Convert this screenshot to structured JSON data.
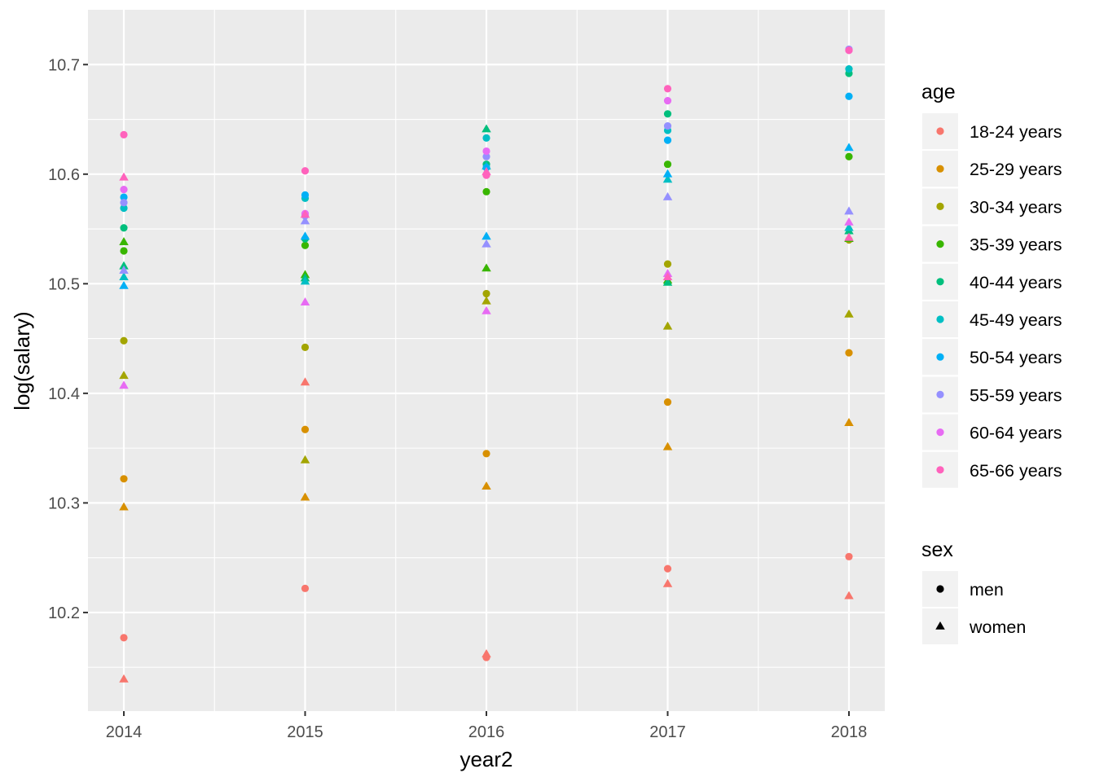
{
  "chart_data": {
    "type": "scatter",
    "xlabel": "year2",
    "ylabel": "log(salary)",
    "categories": [
      "2014",
      "2015",
      "2016",
      "2017",
      "2018"
    ],
    "ylim": [
      10.11,
      10.75
    ],
    "y_ticks": [
      "10.2",
      "10.3",
      "10.4",
      "10.5",
      "10.6",
      "10.7"
    ],
    "grid": true,
    "legend_position": "right",
    "legend_age": {
      "title": "age",
      "entries": [
        {
          "label": "18-24 years",
          "color": "#F8766D"
        },
        {
          "label": "25-29 years",
          "color": "#D89000"
        },
        {
          "label": "30-34 years",
          "color": "#A3A500"
        },
        {
          "label": "35-39 years",
          "color": "#39B600"
        },
        {
          "label": "40-44 years",
          "color": "#00BF7D"
        },
        {
          "label": "45-49 years",
          "color": "#00BFC4"
        },
        {
          "label": "50-54 years",
          "color": "#00B0F6"
        },
        {
          "label": "55-59 years",
          "color": "#9590FF"
        },
        {
          "label": "60-64 years",
          "color": "#E76BF3"
        },
        {
          "label": "65-66 years",
          "color": "#FF62BC"
        }
      ]
    },
    "legend_sex": {
      "title": "sex",
      "entries": [
        {
          "label": "men",
          "shape": "circle"
        },
        {
          "label": "women",
          "shape": "triangle"
        }
      ]
    },
    "series": [
      {
        "age": "18-24 years",
        "sex": "men",
        "values": [
          10.177,
          10.222,
          10.159,
          10.24,
          10.251
        ]
      },
      {
        "age": "18-24 years",
        "sex": "women",
        "values": [
          10.139,
          10.41,
          10.162,
          10.226,
          10.215
        ]
      },
      {
        "age": "25-29 years",
        "sex": "men",
        "values": [
          10.322,
          10.367,
          10.345,
          10.392,
          10.437
        ]
      },
      {
        "age": "25-29 years",
        "sex": "women",
        "values": [
          10.296,
          10.305,
          10.315,
          10.351,
          10.373
        ]
      },
      {
        "age": "30-34 years",
        "sex": "men",
        "values": [
          10.448,
          10.442,
          10.491,
          10.518,
          10.54
        ]
      },
      {
        "age": "30-34 years",
        "sex": "women",
        "values": [
          10.416,
          10.339,
          10.484,
          10.461,
          10.472
        ]
      },
      {
        "age": "35-39 years",
        "sex": "men",
        "values": [
          10.53,
          10.535,
          10.584,
          10.609,
          10.616
        ]
      },
      {
        "age": "35-39 years",
        "sex": "women",
        "values": [
          10.538,
          10.508,
          10.514,
          10.503,
          10.541
        ]
      },
      {
        "age": "40-44 years",
        "sex": "men",
        "values": [
          10.551,
          10.541,
          10.609,
          10.655,
          10.692
        ]
      },
      {
        "age": "40-44 years",
        "sex": "women",
        "values": [
          10.516,
          10.505,
          10.641,
          10.501,
          10.548
        ]
      },
      {
        "age": "45-49 years",
        "sex": "men",
        "values": [
          10.569,
          10.578,
          10.633,
          10.64,
          10.696
        ]
      },
      {
        "age": "45-49 years",
        "sex": "women",
        "values": [
          10.506,
          10.502,
          10.607,
          10.595,
          10.551
        ]
      },
      {
        "age": "50-54 years",
        "sex": "men",
        "values": [
          10.579,
          10.581,
          10.606,
          10.631,
          10.671
        ]
      },
      {
        "age": "50-54 years",
        "sex": "women",
        "values": [
          10.498,
          10.543,
          10.543,
          10.6,
          10.624
        ]
      },
      {
        "age": "55-59 years",
        "sex": "men",
        "values": [
          10.574,
          10.562,
          10.616,
          10.644,
          10.714
        ]
      },
      {
        "age": "55-59 years",
        "sex": "women",
        "values": [
          10.512,
          10.557,
          10.536,
          10.579,
          10.566
        ]
      },
      {
        "age": "60-64 years",
        "sex": "men",
        "values": [
          10.586,
          10.564,
          10.621,
          10.667,
          10.713
        ]
      },
      {
        "age": "60-64 years",
        "sex": "women",
        "values": [
          10.407,
          10.483,
          10.475,
          10.509,
          10.556
        ]
      },
      {
        "age": "65-66 years",
        "sex": "men",
        "values": [
          10.636,
          10.603,
          10.599,
          10.678,
          10.713
        ]
      },
      {
        "age": "65-66 years",
        "sex": "women",
        "values": [
          10.597,
          10.563,
          10.602,
          10.506,
          10.542
        ]
      }
    ]
  }
}
